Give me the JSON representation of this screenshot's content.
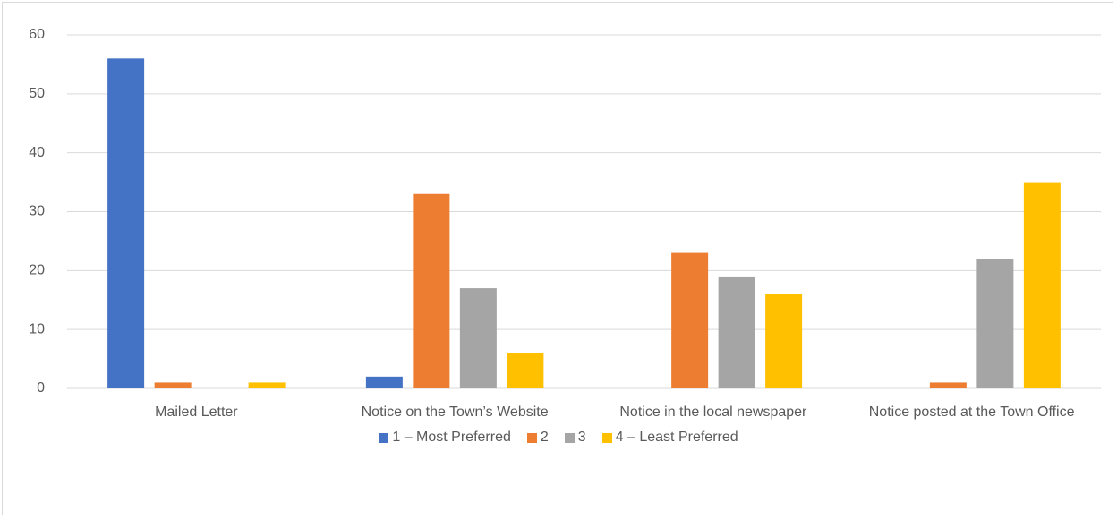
{
  "chart_data": {
    "type": "bar",
    "categories": [
      "Mailed Letter",
      "Notice on the Town’s Website",
      "Notice in the local newspaper",
      "Notice posted at the Town Office"
    ],
    "series": [
      {
        "name": "1 – Most Preferred",
        "color": "#4472c4",
        "values": [
          56,
          2,
          0,
          0
        ]
      },
      {
        "name": "2",
        "color": "#ed7d31",
        "values": [
          1,
          33,
          23,
          1
        ]
      },
      {
        "name": "3",
        "color": "#a5a5a5",
        "values": [
          0,
          17,
          19,
          22
        ]
      },
      {
        "name": "4 – Least Preferred",
        "color": "#ffc000",
        "values": [
          1,
          6,
          16,
          35
        ]
      }
    ],
    "ylim": [
      0,
      60
    ],
    "yticks": [
      0,
      10,
      20,
      30,
      40,
      50,
      60
    ],
    "grid": true,
    "legend": "bottom"
  }
}
